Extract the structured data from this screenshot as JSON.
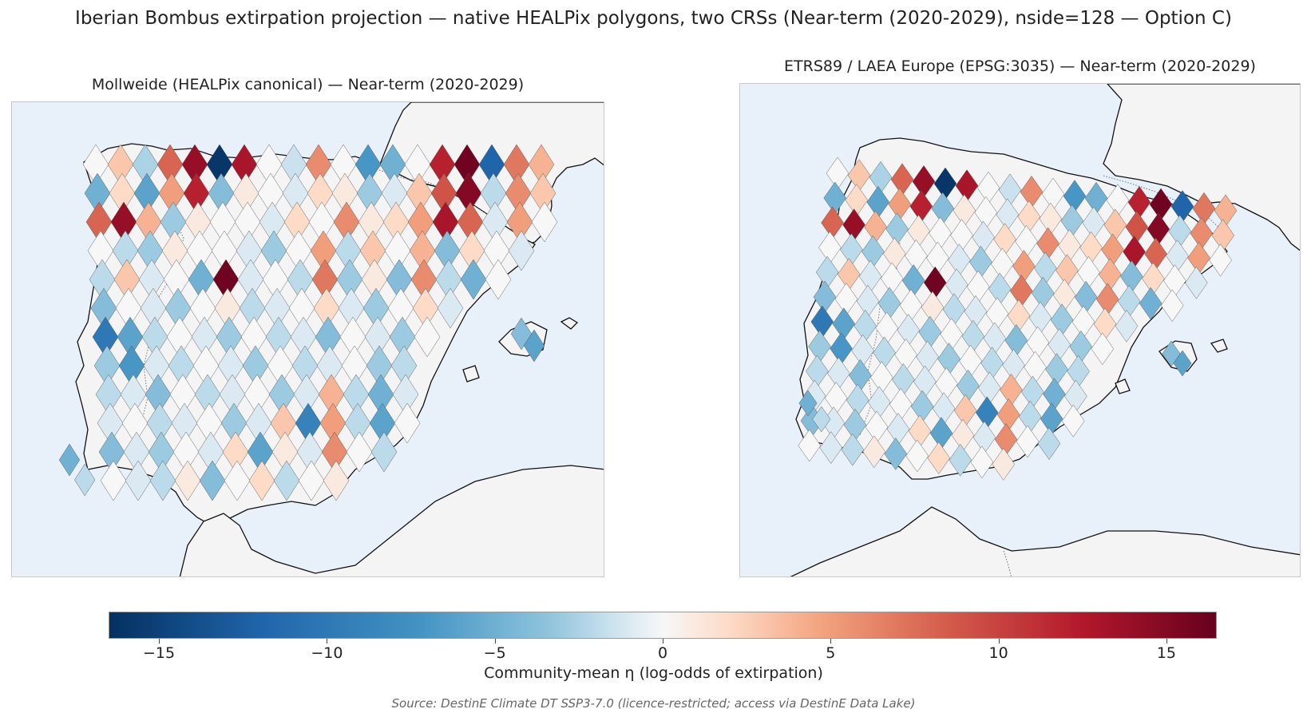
{
  "figure": {
    "title": "Iberian Bombus extirpation projection — native HEALPix polygons, two CRSs (Near-term (2020-2029), nside=128 — Option C)",
    "source": "Source: DestinE Climate DT SSP3-7.0 (licence-restricted; access via DestinE Data Lake)"
  },
  "panels": [
    {
      "title": "Mollweide (HEALPix canonical) — Near-term (2020-2029)",
      "crs": "Mollweide"
    },
    {
      "title": "ETRS89 / LAEA Europe (EPSG:3035) — Near-term (2020-2029)",
      "crs": "EPSG:3035"
    }
  ],
  "colors": {
    "ocean": "#e8f0fa",
    "land": "#f4f4f4",
    "coastline": "#111111",
    "colormap": "RdBu_r"
  },
  "colorbar": {
    "label": "Community-mean η (log-odds of extirpation)",
    "min": -16.5,
    "max": 16.5,
    "ticks": [
      -15,
      -10,
      -5,
      0,
      5,
      10,
      15
    ],
    "tick_labels": [
      "−15",
      "−10",
      "−5",
      "0",
      "5",
      "10",
      "15"
    ]
  },
  "cells": {
    "rows": [
      [
        0,
        3,
        -2.5,
        8,
        14,
        -16,
        13,
        0,
        -1.5,
        6,
        0,
        -7,
        -5,
        0,
        12,
        16,
        -12,
        7,
        4
      ],
      [
        -5,
        2,
        -6,
        5,
        12,
        -4,
        1,
        0,
        -1,
        2,
        1,
        -3,
        -1,
        3,
        9,
        15,
        -2,
        6,
        3
      ],
      [
        8,
        14,
        4,
        -3,
        1,
        0,
        0,
        -1,
        2,
        0,
        6,
        1,
        2,
        5,
        13,
        8,
        -1,
        5,
        0
      ],
      [
        0,
        -2,
        -3,
        1,
        0,
        0,
        -1,
        -3,
        0,
        5,
        -2,
        3,
        0,
        4,
        -4,
        2,
        0,
        -1,
        null
      ],
      [
        -2,
        3,
        -1,
        0,
        -5,
        16,
        -1,
        0,
        -2,
        7,
        -3,
        1,
        -4,
        6,
        -2,
        -5,
        0,
        null,
        null
      ],
      [
        -4,
        0,
        -1,
        -3,
        0,
        1,
        -2,
        -1,
        0,
        2,
        -1,
        -3,
        0,
        2,
        -1,
        null,
        null,
        null,
        null
      ],
      [
        -10,
        -6,
        -2,
        0,
        -1,
        -3,
        0,
        -2,
        -1,
        -4,
        0,
        -1,
        -3,
        0,
        null,
        null,
        null,
        null,
        null
      ],
      [
        -3,
        -7,
        -1,
        -2,
        0,
        -1,
        -3,
        0,
        -2,
        -1,
        0,
        -3,
        -2,
        null,
        null,
        null,
        null,
        null,
        null
      ],
      [
        -2,
        -1,
        -4,
        0,
        -2,
        -1,
        0,
        -3,
        -1,
        4,
        -2,
        -5,
        -1,
        null,
        null,
        null,
        null,
        null,
        null
      ],
      [
        -1,
        0,
        -2,
        -1,
        0,
        -3,
        -1,
        3,
        -9,
        5,
        -2,
        -6,
        0,
        null,
        null,
        null,
        null,
        null,
        null
      ],
      [
        -4,
        -1,
        -3,
        0,
        -1,
        2,
        -6,
        1,
        -1,
        6,
        0,
        -2,
        null,
        null,
        null,
        null,
        null,
        null,
        null
      ],
      [
        0,
        -1,
        -2,
        1,
        -4,
        0,
        2,
        -2,
        0,
        1,
        null,
        null,
        null,
        null,
        null,
        null,
        null,
        null,
        null
      ]
    ],
    "balearic": [
      -4,
      -6
    ],
    "northwest_extra": [
      -5,
      -2
    ]
  }
}
